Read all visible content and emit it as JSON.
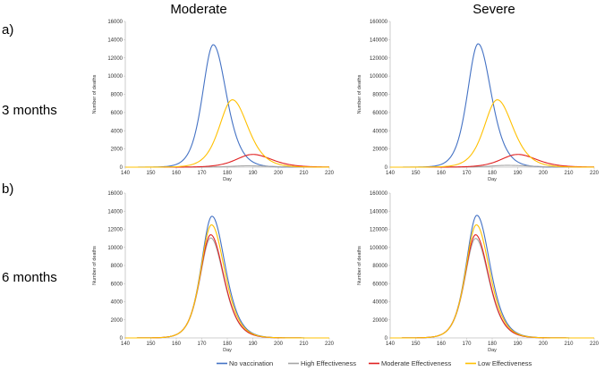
{
  "columns": [
    "Moderate",
    "Severe"
  ],
  "rows": [
    {
      "letter": "a)",
      "label": "3 months"
    },
    {
      "letter": "b)",
      "label": "6 months"
    }
  ],
  "legend": [
    {
      "name": "No vaccination",
      "color": "#4472C4"
    },
    {
      "name": "High Effectiveness",
      "color": "#A5A5A5"
    },
    {
      "name": "Moderate Effectiveness",
      "color": "#E02020"
    },
    {
      "name": "Low Effectiveness",
      "color": "#FFC000"
    }
  ],
  "chart_data": [
    {
      "type": "line",
      "panel": "a-moderate",
      "title": "Moderate",
      "row": "3 months",
      "xlabel": "Day",
      "ylabel": "Number of deaths",
      "xlim": [
        140,
        220
      ],
      "ylim": [
        0,
        16000
      ],
      "xticks": [
        140,
        150,
        160,
        170,
        180,
        190,
        200,
        210,
        220
      ],
      "yticks": [
        0,
        2000,
        4000,
        6000,
        8000,
        10000,
        12000,
        14000,
        16000
      ],
      "series": [
        {
          "name": "No vaccination",
          "peak_day": 174.5,
          "peak": 13450,
          "width_left": 4.5,
          "width_right": 5.5
        },
        {
          "name": "High Effectiveness",
          "peak_day": 188,
          "peak": 150,
          "width_left": 7,
          "width_right": 9
        },
        {
          "name": "Moderate Effectiveness",
          "peak_day": 190,
          "peak": 1400,
          "width_left": 7,
          "width_right": 8
        },
        {
          "name": "Low Effectiveness",
          "peak_day": 182,
          "peak": 7400,
          "width_left": 5.5,
          "width_right": 6.5
        }
      ]
    },
    {
      "type": "line",
      "panel": "a-severe",
      "title": "Severe",
      "row": "3 months",
      "xlabel": "Day",
      "ylabel": "Number of deaths",
      "xlim": [
        140,
        220
      ],
      "ylim": [
        0,
        160000
      ],
      "xticks": [
        140,
        150,
        160,
        170,
        180,
        190,
        200,
        210,
        220
      ],
      "yticks": [
        0,
        20000,
        40000,
        60000,
        80000,
        100000,
        120000,
        140000,
        160000
      ],
      "series": [
        {
          "name": "No vaccination",
          "peak_day": 174.5,
          "peak": 135500,
          "width_left": 4.5,
          "width_right": 5.5
        },
        {
          "name": "High Effectiveness",
          "peak_day": 186,
          "peak": 2000,
          "width_left": 7,
          "width_right": 9
        },
        {
          "name": "Moderate Effectiveness",
          "peak_day": 190,
          "peak": 14000,
          "width_left": 7,
          "width_right": 8
        },
        {
          "name": "Low Effectiveness",
          "peak_day": 182,
          "peak": 74000,
          "width_left": 5.5,
          "width_right": 6.5
        }
      ]
    },
    {
      "type": "line",
      "panel": "b-moderate",
      "title": "Moderate",
      "row": "6 months",
      "xlabel": "Day",
      "ylabel": "Number of deaths",
      "xlim": [
        140,
        220
      ],
      "ylim": [
        0,
        16000
      ],
      "xticks": [
        140,
        150,
        160,
        170,
        180,
        190,
        200,
        210,
        220
      ],
      "yticks": [
        0,
        2000,
        4000,
        6000,
        8000,
        10000,
        12000,
        14000,
        16000
      ],
      "series": [
        {
          "name": "No vaccination",
          "peak_day": 174,
          "peak": 13450,
          "width_left": 4.5,
          "width_right": 5.5
        },
        {
          "name": "High Effectiveness",
          "peak_day": 173.5,
          "peak": 11050,
          "width_left": 4.5,
          "width_right": 5.5
        },
        {
          "name": "Moderate Effectiveness",
          "peak_day": 173.5,
          "peak": 11400,
          "width_left": 4.5,
          "width_right": 5.5
        },
        {
          "name": "Low Effectiveness",
          "peak_day": 173.8,
          "peak": 12500,
          "width_left": 4.5,
          "width_right": 5.5
        }
      ]
    },
    {
      "type": "line",
      "panel": "b-severe",
      "title": "Severe",
      "row": "6 months",
      "xlabel": "Day",
      "ylabel": "Number of deaths",
      "xlim": [
        140,
        220
      ],
      "ylim": [
        0,
        160000
      ],
      "xticks": [
        140,
        150,
        160,
        170,
        180,
        190,
        200,
        210,
        220
      ],
      "yticks": [
        0,
        20000,
        40000,
        60000,
        80000,
        100000,
        120000,
        140000,
        160000
      ],
      "series": [
        {
          "name": "No vaccination",
          "peak_day": 174,
          "peak": 135500,
          "width_left": 4.5,
          "width_right": 5.5
        },
        {
          "name": "High Effectiveness",
          "peak_day": 173.5,
          "peak": 110000,
          "width_left": 4.5,
          "width_right": 5.5
        },
        {
          "name": "Moderate Effectiveness",
          "peak_day": 173.5,
          "peak": 114000,
          "width_left": 4.5,
          "width_right": 5.5
        },
        {
          "name": "Low Effectiveness",
          "peak_day": 173.8,
          "peak": 125000,
          "width_left": 4.5,
          "width_right": 5.5
        }
      ]
    }
  ]
}
